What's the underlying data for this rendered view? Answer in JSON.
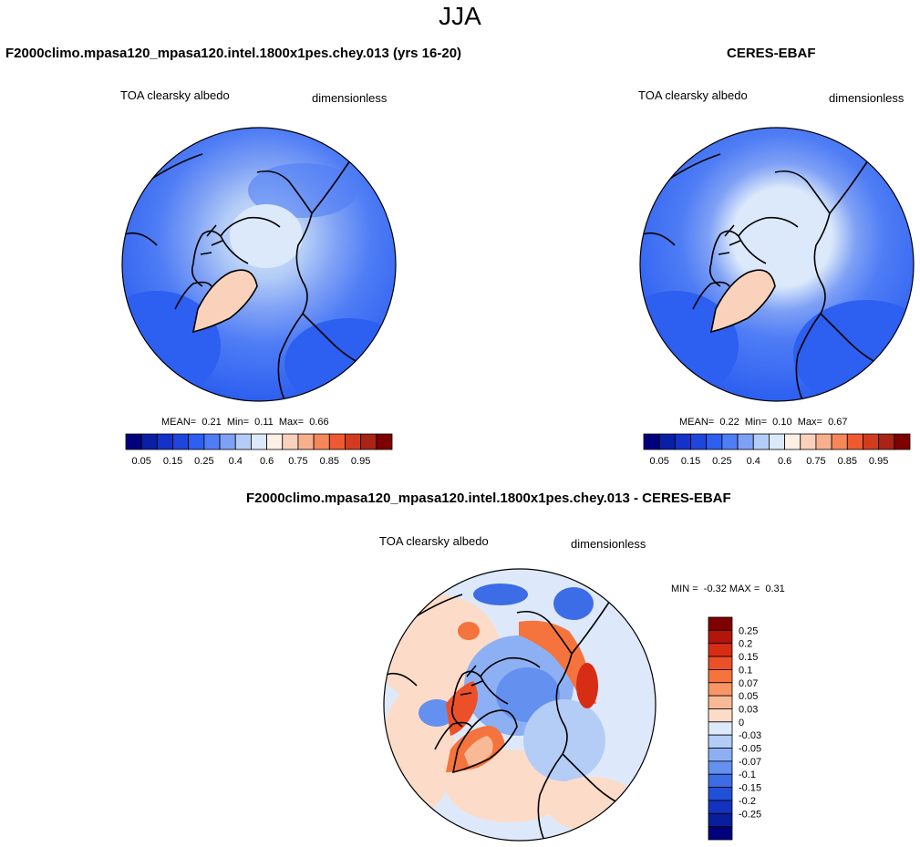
{
  "season": "JJA",
  "panels": [
    {
      "title": "F2000climo.mpasa120_mpasa120.intel.1800x1pes.chey.013 (yrs 16-20)",
      "variable": "TOA clearsky albedo",
      "units": "dimensionless",
      "stats": {
        "mean_label": "MEAN=",
        "mean": "0.21",
        "min_label": "Min=",
        "min": "0.11",
        "max_label": "Max=",
        "max": "0.66"
      }
    },
    {
      "title": "CERES-EBAF",
      "variable": "TOA clearsky albedo",
      "units": "dimensionless",
      "stats": {
        "mean_label": "MEAN=",
        "mean": "0.22",
        "min_label": "Min=",
        "min": "0.10",
        "max_label": "Max=",
        "max": "0.67"
      }
    },
    {
      "title": "F2000climo.mpasa120_mpasa120.intel.1800x1pes.chey.013 - CERES-EBAF",
      "variable": "TOA clearsky albedo",
      "units": "dimensionless",
      "stats_text": {
        "min_label": "MIN =",
        "min": "-0.32",
        "max_label": "MAX =",
        "max": "0.31"
      }
    }
  ],
  "colorbar_main": {
    "colors": [
      "#00007f",
      "#0a1ea6",
      "#1432c8",
      "#1e46dc",
      "#2d5ff0",
      "#4f7df5",
      "#7ea0f5",
      "#b4cdf7",
      "#dbe9fb",
      "#fff0e6",
      "#fad2bc",
      "#f7af8c",
      "#f5875a",
      "#f05a32",
      "#d23c1e",
      "#aa2314",
      "#7f0000"
    ],
    "tick_labels": [
      "0.05",
      "0.15",
      "0.25",
      "0.4",
      "0.6",
      "0.75",
      "0.85",
      "0.95"
    ]
  },
  "colorbar_diff": {
    "colors": [
      "#7f0000",
      "#b4140a",
      "#d72d14",
      "#eb5028",
      "#f5733c",
      "#f79664",
      "#fab996",
      "#fcdcc8",
      "#dde9fb",
      "#b4cdf7",
      "#8cb0f3",
      "#6490ef",
      "#3c6de6",
      "#2050d7",
      "#1432be",
      "#0a1e9b",
      "#00007f"
    ],
    "tick_labels": [
      "0.25",
      "0.2",
      "0.15",
      "0.1",
      "0.07",
      "0.05",
      "0.03",
      "0",
      "-0.03",
      "-0.05",
      "-0.07",
      "-0.1",
      "-0.15",
      "-0.2",
      "-0.25"
    ]
  }
}
